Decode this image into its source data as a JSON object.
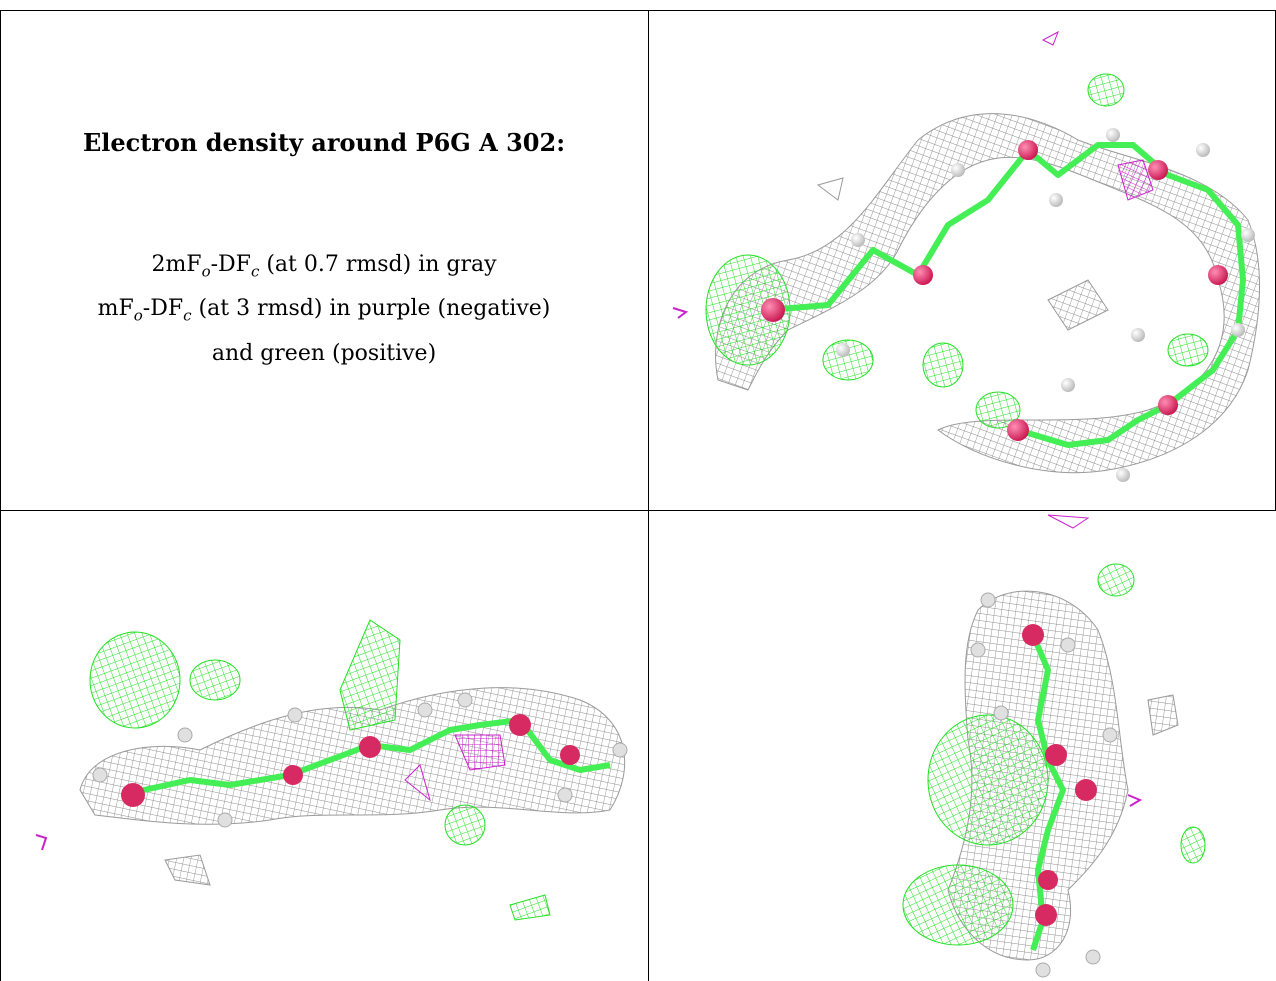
{
  "caption": {
    "title": "Electron density around P6G A 302:",
    "line1": {
      "pre": "2mF",
      "sub1": "o",
      "mid": "-DF",
      "sub2": "c",
      "post": " (at 0.7 rmsd) in gray"
    },
    "line2": {
      "pre": "mF",
      "sub1": "o",
      "mid": "-DF",
      "sub2": "c",
      "post": " (at 3 rmsd) in purple (negative)"
    },
    "line3": "and green (positive)"
  },
  "colors": {
    "mesh_gray": "#9a9a9a",
    "mesh_green": "#22e022",
    "mesh_purple": "#cc22cc",
    "bond_green": "#44ee55",
    "oxygen": "#e0306a",
    "hydrogen": "#e8e8e8"
  }
}
